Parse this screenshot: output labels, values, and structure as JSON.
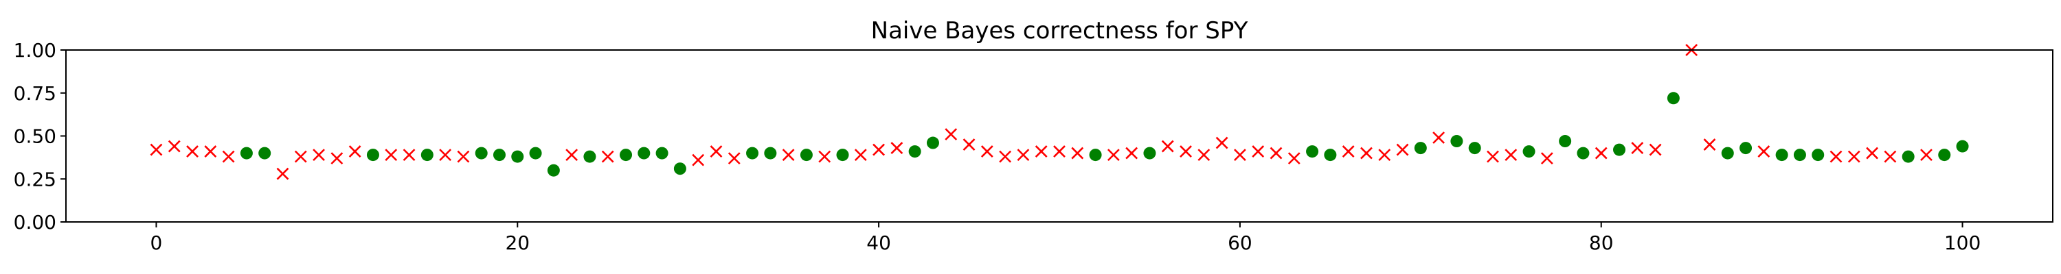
{
  "chart_data": {
    "type": "scatter",
    "title": "Naive Bayes correctness for SPY",
    "xlabel": "",
    "ylabel": "",
    "xlim": [
      -5,
      105
    ],
    "ylim": [
      0,
      1
    ],
    "xticks": [
      0,
      20,
      40,
      60,
      80,
      100
    ],
    "xtick_labels": [
      "0",
      "20",
      "40",
      "60",
      "80",
      "100"
    ],
    "yticks": [
      0,
      0.25,
      0.5,
      0.75,
      1.0
    ],
    "ytick_labels": [
      "0.00",
      "0.25",
      "0.50",
      "0.75",
      "1.00"
    ],
    "grid": false,
    "series": [
      {
        "marker": "circle",
        "color": "#008000",
        "x": [
          5,
          6,
          12,
          15,
          18,
          19,
          20,
          21,
          22,
          24,
          26,
          27,
          28,
          29,
          33,
          34,
          36,
          38,
          42,
          43,
          52,
          55,
          64,
          65,
          70,
          72,
          73,
          76,
          78,
          79,
          81,
          84,
          87,
          88,
          90,
          91,
          92,
          97,
          99,
          100
        ],
        "y": [
          0.4,
          0.4,
          0.39,
          0.39,
          0.4,
          0.39,
          0.38,
          0.4,
          0.3,
          0.38,
          0.39,
          0.4,
          0.4,
          0.31,
          0.4,
          0.4,
          0.39,
          0.39,
          0.41,
          0.46,
          0.39,
          0.4,
          0.41,
          0.39,
          0.43,
          0.47,
          0.43,
          0.41,
          0.47,
          0.4,
          0.42,
          0.72,
          0.4,
          0.43,
          0.39,
          0.39,
          0.39,
          0.38,
          0.39,
          0.44
        ]
      },
      {
        "marker": "x",
        "color": "#ff0000",
        "x": [
          0,
          1,
          2,
          3,
          4,
          7,
          8,
          9,
          10,
          11,
          13,
          14,
          16,
          17,
          23,
          25,
          30,
          31,
          32,
          35,
          37,
          39,
          40,
          41,
          44,
          45,
          46,
          47,
          48,
          49,
          50,
          51,
          53,
          54,
          56,
          57,
          58,
          59,
          60,
          61,
          62,
          63,
          66,
          67,
          68,
          69,
          71,
          74,
          75,
          77,
          80,
          82,
          83,
          85,
          86,
          89,
          93,
          94,
          95,
          96,
          98
        ],
        "y": [
          0.42,
          0.44,
          0.41,
          0.41,
          0.38,
          0.28,
          0.38,
          0.39,
          0.37,
          0.41,
          0.39,
          0.39,
          0.39,
          0.38,
          0.39,
          0.38,
          0.36,
          0.41,
          0.37,
          0.39,
          0.38,
          0.39,
          0.42,
          0.43,
          0.51,
          0.45,
          0.41,
          0.38,
          0.39,
          0.41,
          0.41,
          0.4,
          0.39,
          0.4,
          0.44,
          0.41,
          0.39,
          0.46,
          0.39,
          0.41,
          0.4,
          0.37,
          0.41,
          0.4,
          0.39,
          0.42,
          0.49,
          0.38,
          0.39,
          0.37,
          0.4,
          0.43,
          0.42,
          1.0,
          0.45,
          0.41,
          0.38,
          0.38,
          0.4,
          0.38,
          0.39
        ]
      }
    ]
  }
}
